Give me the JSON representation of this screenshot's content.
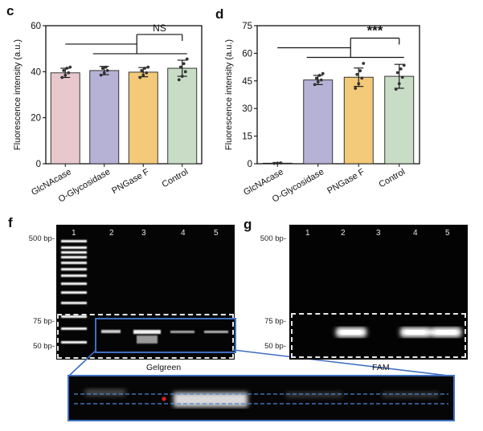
{
  "panels": {
    "c": {
      "letter": "c",
      "significance": "NS",
      "chart_data": {
        "type": "bar",
        "categories": [
          "GlcNAcase",
          "O-Glycosidase",
          "PNGase F",
          "Control"
        ],
        "values": [
          39.5,
          40.5,
          39.8,
          41.5
        ],
        "errors": [
          2.0,
          1.8,
          2.0,
          3.5
        ],
        "points": [
          [
            37.5,
            38.5,
            39.5,
            40.5,
            41.5,
            42.0
          ],
          [
            38.5,
            39.5,
            40.5,
            41.5,
            42.0
          ],
          [
            37.5,
            38.5,
            39.5,
            40.5,
            41.5,
            42.0
          ],
          [
            36.5,
            38.0,
            40.0,
            42.0,
            43.5,
            45.5
          ]
        ],
        "colors": [
          "#e8c8cd",
          "#b6b2d6",
          "#f3c97a",
          "#c8dcc6"
        ],
        "ylabel": "Fluorescence intensity (a.u.)",
        "ylim": [
          0,
          60
        ],
        "yticks": [
          0,
          20,
          40,
          60
        ]
      }
    },
    "d": {
      "letter": "d",
      "significance": "***",
      "chart_data": {
        "type": "bar",
        "categories": [
          "GlcNAcase",
          "O-Glycosidase",
          "PNGase F",
          "Control"
        ],
        "values": [
          0.3,
          45.5,
          47.0,
          47.5
        ],
        "errors": [
          0.3,
          2.5,
          5.0,
          6.5
        ],
        "points": [
          [
            0.2,
            0.3,
            0.4
          ],
          [
            43.0,
            44.5,
            45.5,
            46.5,
            48.0,
            49.0
          ],
          [
            41.0,
            43.5,
            46.5,
            48.5,
            50.5,
            54.5
          ],
          [
            40.5,
            43.5,
            47.0,
            49.5,
            51.5,
            53.5
          ]
        ],
        "colors": [
          "#e8c8cd",
          "#b6b2d6",
          "#f3c97a",
          "#c8dcc6"
        ],
        "ylabel": "Fluorescence intensity (a.u.)",
        "ylim": [
          0,
          75
        ],
        "yticks": [
          0,
          15,
          30,
          45,
          60,
          75
        ]
      }
    },
    "f": {
      "letter": "f",
      "lanes": [
        "1",
        "2",
        "3",
        "4",
        "5"
      ],
      "bp_labels": [
        "500 bp-",
        "75 bp-",
        "50 bp-"
      ],
      "caption": "Gelgreen"
    },
    "g": {
      "letter": "g",
      "lanes": [
        "1",
        "2",
        "3",
        "4",
        "5"
      ],
      "bp_labels": [
        "500 bp-",
        "75 bp-",
        "50 bp-"
      ],
      "caption": "FAM"
    }
  }
}
